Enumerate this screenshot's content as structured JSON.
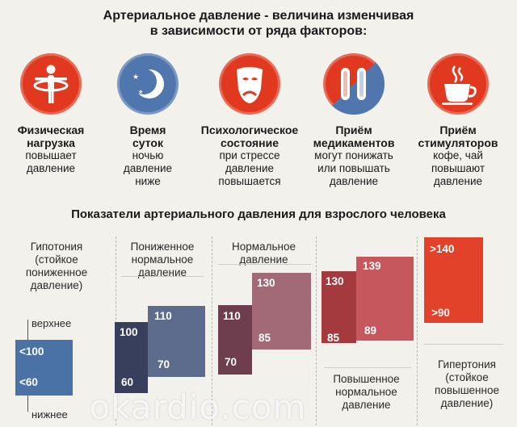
{
  "title": {
    "line1": "Артериальное давление - величина изменчивая",
    "line2": "в зависимости от ряда факторов:"
  },
  "factors": [
    {
      "icon": "person-exercise-icon",
      "color": "#e0391f",
      "title1": "Физическая",
      "title2": "нагрузка",
      "desc1": "повышает",
      "desc2": "давление",
      "desc3": ""
    },
    {
      "icon": "moon-stars-icon",
      "color": "#4f77ad",
      "title1": "Время",
      "title2": "суток",
      "desc1": "ночью",
      "desc2": "давление",
      "desc3": "ниже"
    },
    {
      "icon": "sad-mask-icon",
      "color": "#e0391f",
      "title1": "Психологическое",
      "title2": "состояние",
      "desc1": "при стрессе",
      "desc2": "давление",
      "desc3": "повышается"
    },
    {
      "icon": "pills-icon",
      "color": "#e0391f",
      "title1": "Приём",
      "title2": "медикаментов",
      "desc1": "могут понижать",
      "desc2": "или повышать",
      "desc3": "давление"
    },
    {
      "icon": "coffee-cup-icon",
      "color": "#e0391f",
      "title1": "Приём",
      "title2": "стимуляторов",
      "desc1": "кофе, чай",
      "desc2": "повышают",
      "desc3": "давление"
    }
  ],
  "subtitle": "Показатели артериального давления для взрослого человека",
  "categories": [
    {
      "l1": "Гипотония",
      "l2": "(стойкое",
      "l3": "пониженное",
      "l4": "давление)"
    },
    {
      "l1": "Пониженное",
      "l2": "нормальное",
      "l3": "давление",
      "l4": ""
    },
    {
      "l1": "Нормальное",
      "l2": "давление",
      "l3": "",
      "l4": ""
    },
    {
      "l1": "Повышенное",
      "l2": "нормальное",
      "l3": "давление",
      "l4": ""
    },
    {
      "l1": "Гипертония",
      "l2": "(стойкое",
      "l3": "повышенное",
      "l4": "давление)"
    }
  ],
  "hypotonia": {
    "upper_label": "верхнее",
    "lower_label": "нижнее",
    "upper": "<100",
    "lower": "<60"
  },
  "values": {
    "low_normal": {
      "lower_bar": "100",
      "lower_bar_bottom": "60",
      "upper_bar": "110",
      "upper_bar_bottom": "70"
    },
    "normal": {
      "lower_bar": "110",
      "lower_bar_bottom": "70",
      "upper_bar": "130",
      "upper_bar_bottom": "85"
    },
    "high_normal": {
      "lower_bar": "130",
      "lower_bar_bottom": "85",
      "upper_bar": "139",
      "upper_bar_bottom": "89"
    },
    "hypertonia": {
      "top": ">140",
      "bottom": ">90"
    }
  },
  "colors": {
    "hypotonia": "#4a72a6",
    "low_normal_dark": "#383f5c",
    "low_normal_light": "#5d6b8d",
    "normal_dark": "#6e3d4e",
    "normal_light": "#a16a76",
    "high_normal_dark": "#a53a3e",
    "high_normal_light": "#c6585d",
    "hypertonia": "#e2412a"
  },
  "watermark": "okardio.com"
}
